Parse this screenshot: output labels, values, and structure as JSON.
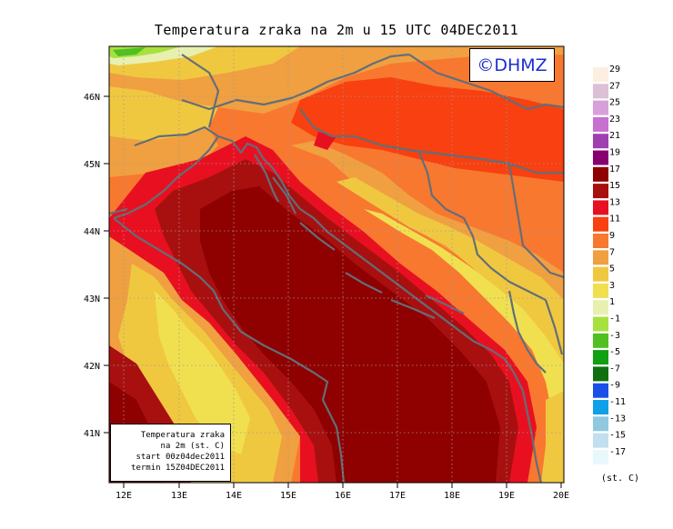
{
  "title": "Temperatura zraka na 2m u 15 UTC 04DEC2011",
  "copyright": "©DHMZ",
  "info": {
    "line1": "Temperatura zraka",
    "line2": "na 2m (st. C)",
    "line3": "start 00z04dec2011",
    "line4": "termin 15Z04DEC2011"
  },
  "lat_labels": [
    "46N",
    "45N",
    "44N",
    "43N",
    "42N",
    "41N"
  ],
  "lon_labels": [
    "12E",
    "13E",
    "14E",
    "15E",
    "16E",
    "17E",
    "18E",
    "19E",
    "20E"
  ],
  "legend": {
    "unit": "(st. C)",
    "labels": [
      "29",
      "27",
      "25",
      "23",
      "21",
      "19",
      "17",
      "15",
      "13",
      "11",
      "9",
      "7",
      "5",
      "3",
      "1",
      "-1",
      "-3",
      "-5",
      "-7",
      "-9",
      "-11",
      "-13",
      "-15",
      "-17"
    ],
    "colors": [
      "#fdeee2",
      "#dcc0d6",
      "#d8a0d8",
      "#c870d0",
      "#a040b0",
      "#880070",
      "#8f0000",
      "#a81010",
      "#e81020",
      "#f84010",
      "#f87830",
      "#f0a040",
      "#f0c840",
      "#f0e050",
      "#e8f0b0",
      "#a8e040",
      "#50c020",
      "#10a010",
      "#107010",
      "#1a50e8",
      "#10a0e8",
      "#90c8e0",
      "#c0e0f0",
      "#e8f8fc"
    ]
  },
  "colors": {
    "coast_border": "#636e78",
    "frame": "#000000",
    "copyright_text": "#1b2fcf"
  }
}
